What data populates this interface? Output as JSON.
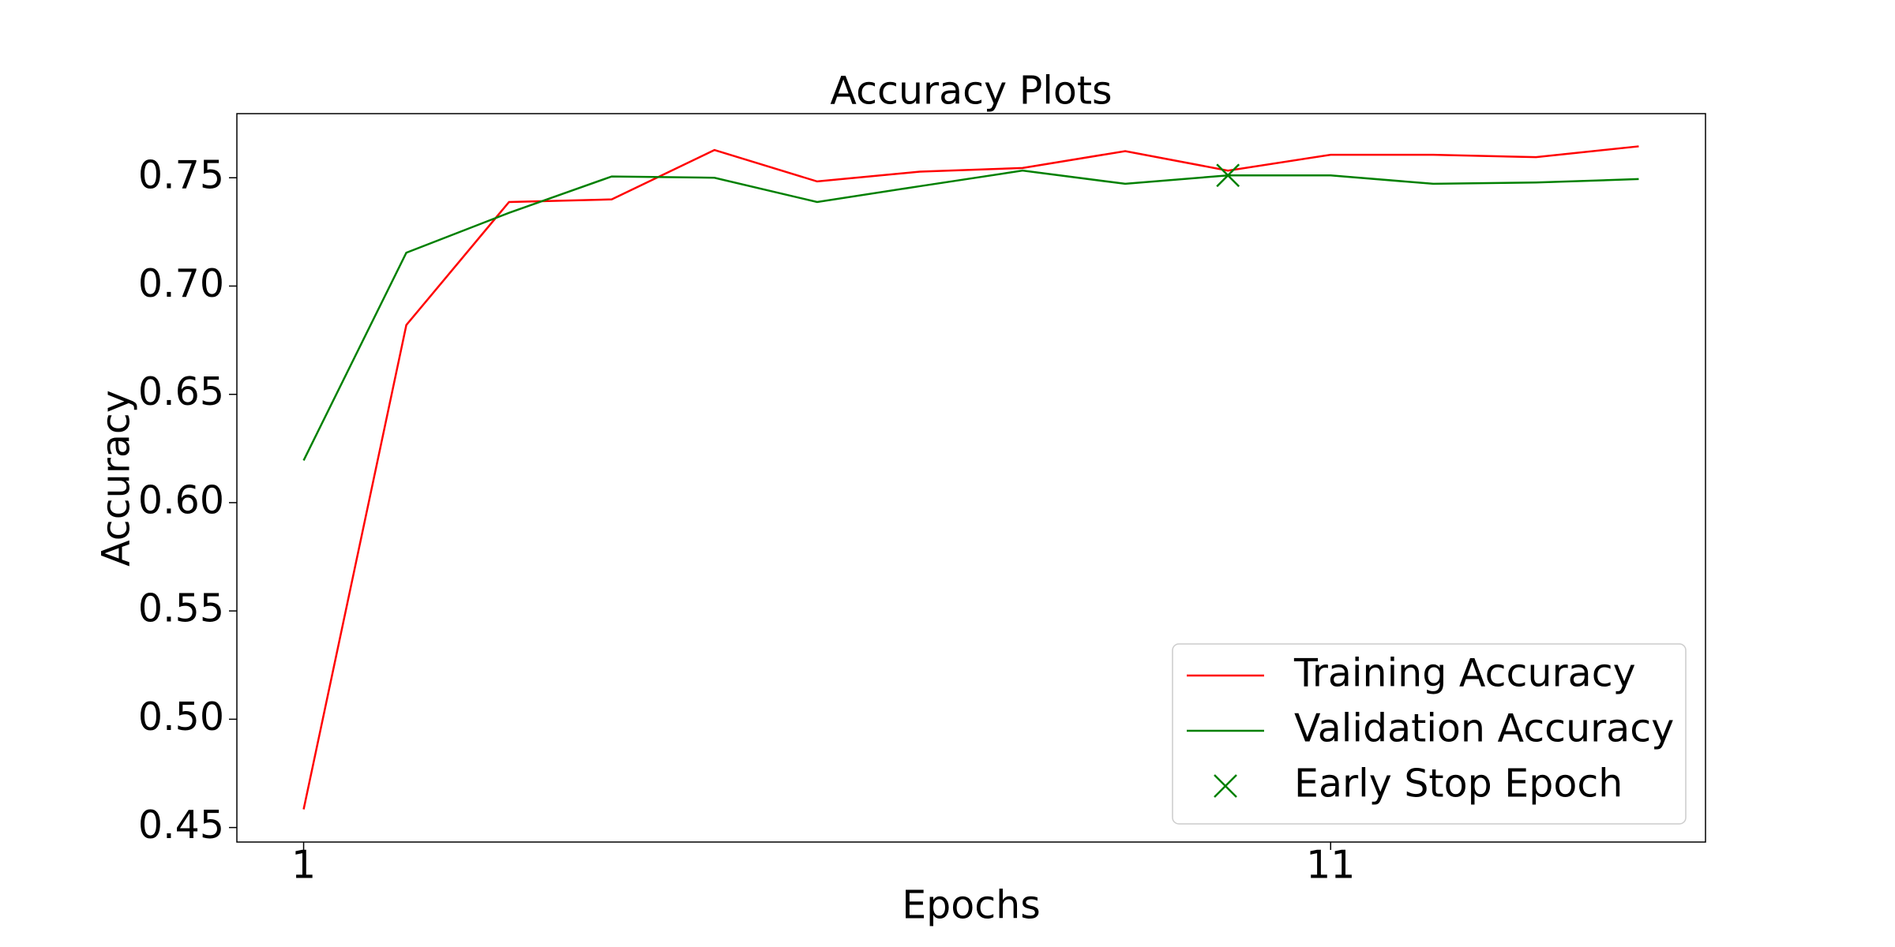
{
  "chart_data": {
    "type": "line",
    "title": "Accuracy Plots",
    "xlabel": "Epochs",
    "ylabel": "Accuracy",
    "x": [
      1,
      2,
      3,
      4,
      5,
      6,
      7,
      8,
      9,
      10,
      11,
      12,
      13,
      14
    ],
    "series": [
      {
        "name": "Training Accuracy",
        "color": "#ff0000",
        "values": [
          0.4584,
          0.682,
          0.7388,
          0.74,
          0.7628,
          0.7483,
          0.7528,
          0.7545,
          0.7623,
          0.7533,
          0.7606,
          0.7606,
          0.7595,
          0.7645
        ]
      },
      {
        "name": "Validation Accuracy",
        "color": "#008000",
        "values": [
          0.6195,
          0.7154,
          0.7338,
          0.7506,
          0.75,
          0.7388,
          0.7461,
          0.7533,
          0.7472,
          0.7511,
          0.7511,
          0.7472,
          0.7478,
          0.7494
        ]
      }
    ],
    "early_stop": {
      "name": "Early Stop Epoch",
      "color": "#008000",
      "x": 10,
      "y": 0.7511
    },
    "xlim": [
      0.35,
      14.65
    ],
    "xticks": [
      1,
      11
    ],
    "ylim": [
      0.4433,
      0.7796
    ],
    "yticks": [
      {
        "value": 0.45,
        "label": "0.45"
      },
      {
        "value": 0.5,
        "label": "0.50"
      },
      0.55,
      {
        "value": 0.6,
        "label": "0.60"
      },
      0.65,
      {
        "value": 0.7,
        "label": "0.70"
      },
      0.75
    ],
    "grid": false,
    "legend": "lower right"
  }
}
